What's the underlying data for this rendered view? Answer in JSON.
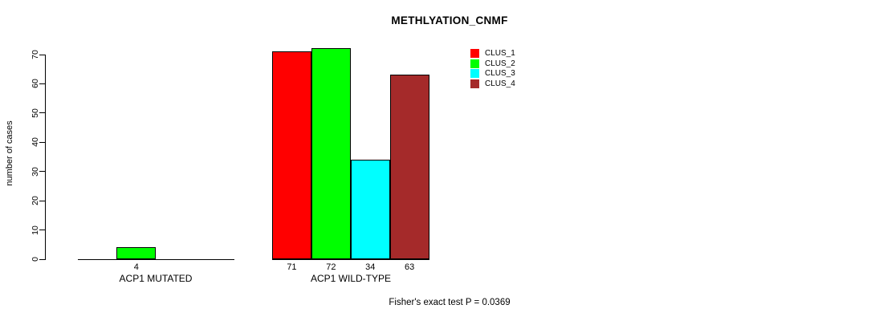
{
  "chart_data": {
    "type": "bar",
    "title": "METHLYATION_CNMF",
    "ylabel": "number of cases",
    "ylim": [
      0,
      70
    ],
    "yticks": [
      0,
      10,
      20,
      30,
      40,
      50,
      60,
      70
    ],
    "grid": false,
    "categories": [
      "ACP1 MUTATED",
      "ACP1 WILD-TYPE"
    ],
    "series": [
      {
        "name": "CLUS_1",
        "color": "#ff0000",
        "values": [
          0,
          71
        ]
      },
      {
        "name": "CLUS_2",
        "color": "#00ff00",
        "values": [
          4,
          72
        ]
      },
      {
        "name": "CLUS_3",
        "color": "#00ffff",
        "values": [
          0,
          34
        ]
      },
      {
        "name": "CLUS_4",
        "color": "#a52a2a",
        "values": [
          0,
          63
        ]
      }
    ],
    "bar_labels": [
      [
        "",
        "4",
        "",
        ""
      ],
      [
        "71",
        "72",
        "34",
        "63"
      ]
    ],
    "legend": {
      "position": "top-right",
      "entries": [
        "CLUS_1",
        "CLUS_2",
        "CLUS_3",
        "CLUS_4"
      ]
    },
    "footnote": "Fisher's exact test P = 0.0369"
  }
}
